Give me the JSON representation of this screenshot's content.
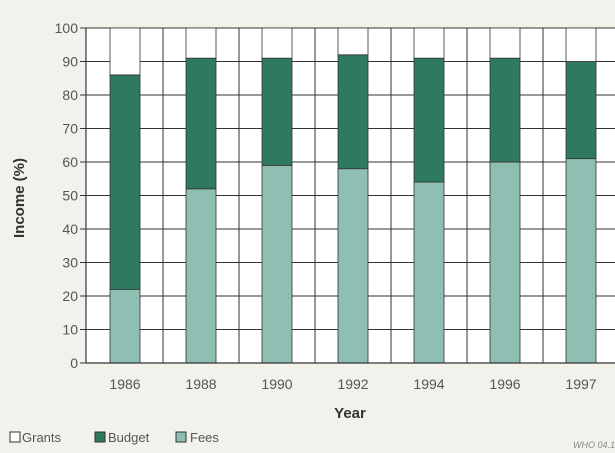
{
  "chart_data": {
    "type": "bar",
    "stacked": true,
    "categories": [
      "1986",
      "1988",
      "1990",
      "1992",
      "1994",
      "1996",
      "1997"
    ],
    "series": [
      {
        "name": "Fees",
        "values": [
          22,
          52,
          59,
          58,
          54,
          60,
          61
        ]
      },
      {
        "name": "Budget",
        "values": [
          64,
          39,
          32,
          34,
          37,
          31,
          29
        ]
      },
      {
        "name": "Grants",
        "values": [
          14,
          9,
          9,
          8,
          9,
          9,
          10
        ]
      }
    ],
    "legend_order": [
      "Grants",
      "Budget",
      "Fees"
    ],
    "xlabel": "Year",
    "ylabel": "Income (%)",
    "ylim": [
      0,
      100
    ],
    "yticks": [
      0,
      10,
      20,
      30,
      40,
      50,
      60,
      70,
      80,
      90,
      100
    ],
    "grid": true,
    "legend_position": "bottom-left",
    "colors": {
      "Fees": "#8fbfb2",
      "Budget": "#2f7a5e",
      "Grants": "#ffffff"
    }
  },
  "credit": "WHO 04.1"
}
